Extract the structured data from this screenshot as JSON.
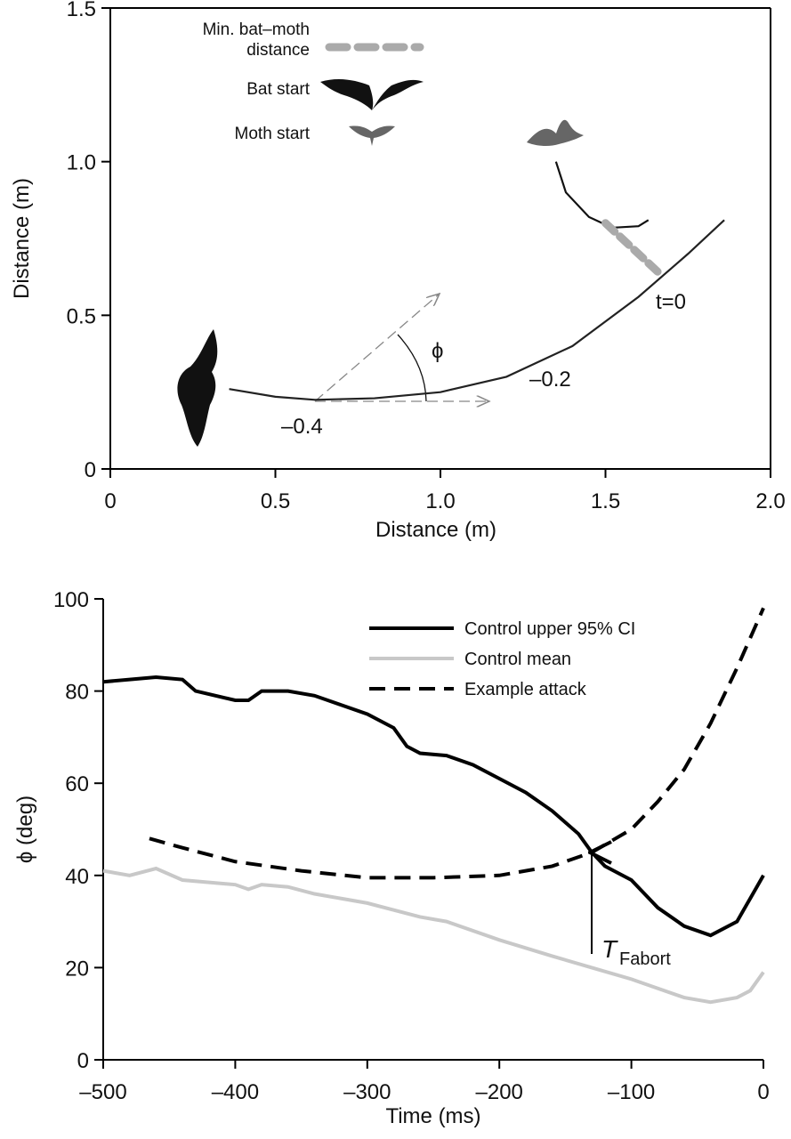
{
  "chart_data": [
    {
      "type": "line",
      "xlabel": "Distance (m)",
      "ylabel": "Distance (m)",
      "xlim": [
        0,
        2
      ],
      "ylim": [
        0,
        1.5
      ],
      "xticks": [
        0,
        0.5,
        {
          "value": 1,
          "label": "1.0"
        },
        1.5,
        {
          "value": 2,
          "label": "2.0"
        }
      ],
      "yticks": [
        0,
        0.5,
        {
          "value": 1,
          "label": "1.0"
        },
        1.5
      ],
      "frame": true,
      "legend": "upper left",
      "series": [
        {
          "color": "#222222",
          "x": [
            0.36,
            0.5,
            0.62,
            0.8,
            1.0,
            1.2,
            1.4,
            1.6,
            1.75,
            1.86
          ],
          "values": [
            0.26,
            0.235,
            0.225,
            0.23,
            0.25,
            0.3,
            0.4,
            0.56,
            0.7,
            0.81
          ]
        },
        {
          "color": "#111111",
          "x": [
            1.35,
            1.38,
            1.45,
            1.52,
            1.6,
            1.63
          ],
          "values": [
            1.0,
            0.9,
            0.82,
            0.785,
            0.79,
            0.81
          ]
        },
        {
          "name": "Min. bat–moth distance",
          "color": "#aaaaaa",
          "dash": true,
          "x": [
            1.5,
            1.66
          ],
          "values": [
            0.8,
            0.64
          ]
        }
      ],
      "icon_labels": [
        "Bat start",
        "Moth start"
      ],
      "annotations": [
        "t=0",
        "–0.2",
        "–0.4",
        "ϕ"
      ]
    },
    {
      "type": "line",
      "xlabel": "Time (ms)",
      "ylabel": "ϕ (deg)",
      "xlim": [
        -500,
        0
      ],
      "ylim": [
        0,
        100
      ],
      "xticks": [
        {
          "value": -500,
          "label": "–500"
        },
        {
          "value": -400,
          "label": "–400"
        },
        {
          "value": -300,
          "label": "–300"
        },
        {
          "value": -200,
          "label": "–200"
        },
        {
          "value": -100,
          "label": "–100"
        },
        0
      ],
      "yticks": [
        0,
        20,
        40,
        60,
        80,
        100
      ],
      "frame": false,
      "legend": "upper right",
      "series": [
        {
          "name": "Control upper 95% CI",
          "color": "#000000",
          "x": [
            -500,
            -480,
            -460,
            -440,
            -430,
            -400,
            -390,
            -380,
            -360,
            -340,
            -320,
            -300,
            -280,
            -270,
            -260,
            -240,
            -220,
            -200,
            -180,
            -160,
            -140,
            -130,
            -120,
            -100,
            -80,
            -60,
            -40,
            -20,
            -10,
            0
          ],
          "values": [
            82,
            82.5,
            83,
            82.5,
            80,
            78,
            78,
            80,
            80,
            79,
            77,
            75,
            72,
            68,
            66.5,
            66,
            64,
            61,
            58,
            54,
            49,
            45,
            42,
            39,
            33,
            29,
            27,
            30,
            35,
            40
          ]
        },
        {
          "name": "Control mean",
          "color": "#c8c8c8",
          "x": [
            -500,
            -480,
            -460,
            -440,
            -400,
            -390,
            -380,
            -360,
            -340,
            -300,
            -260,
            -240,
            -200,
            -160,
            -130,
            -100,
            -80,
            -60,
            -40,
            -20,
            -10,
            0
          ],
          "values": [
            41,
            40,
            41.5,
            39,
            38,
            37,
            38,
            37.5,
            36,
            34,
            31,
            30,
            26,
            22.5,
            20,
            17.5,
            15.5,
            13.5,
            12.5,
            13.5,
            15,
            19
          ]
        },
        {
          "name": "Example attack",
          "color": "#000000",
          "dash": true,
          "x": [
            -465,
            -440,
            -400,
            -350,
            -300,
            -250,
            -200,
            -160,
            -130,
            -100,
            -80,
            -60,
            -40,
            -20,
            0
          ],
          "values": [
            48,
            46,
            43,
            41,
            39.5,
            39.5,
            40,
            42,
            45,
            50,
            56,
            63,
            73,
            85,
            98
          ]
        }
      ],
      "annotations": [
        {
          "text": "T",
          "sub": "Fabort"
        }
      ]
    }
  ]
}
